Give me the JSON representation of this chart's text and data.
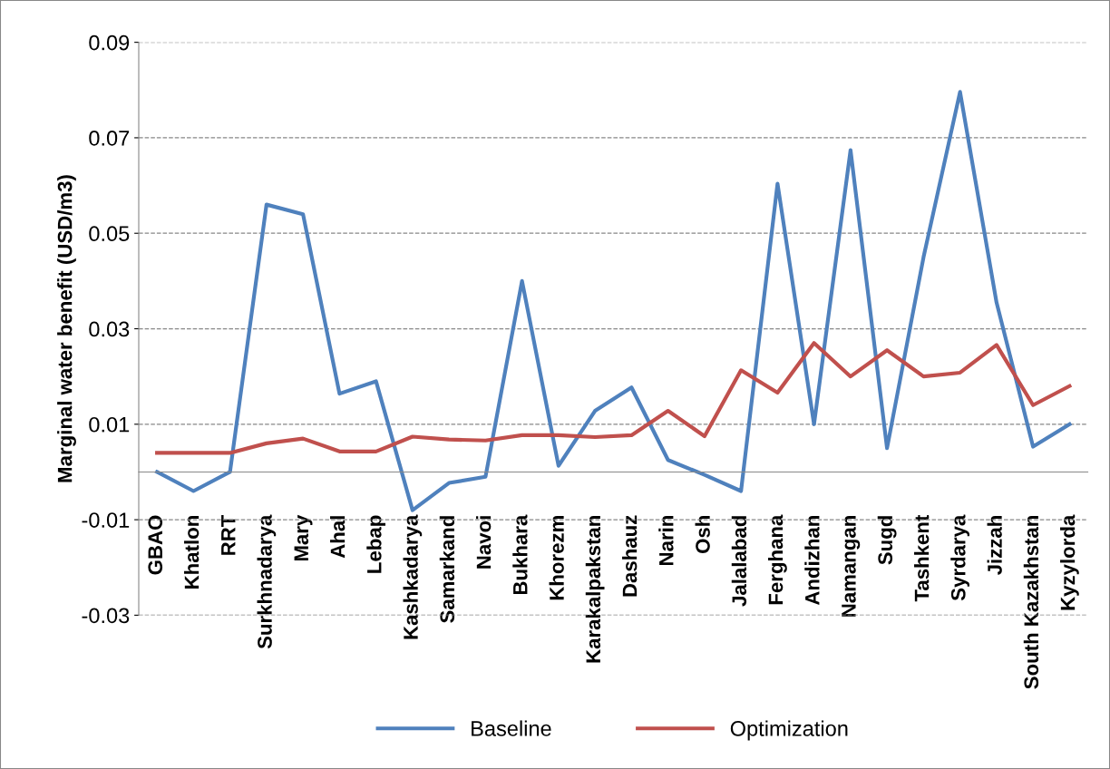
{
  "chart_data": {
    "type": "line",
    "ylabel": "Marginal water benefit (USD/m3)",
    "categories": [
      "GBAO",
      "Khatlon",
      "RRT",
      "Surkhnadarya",
      "Mary",
      "Ahal",
      "Lebap",
      "Kashkadarya",
      "Samarkand",
      "Navoi",
      "Bukhara",
      "Khorezm",
      "Karakalpakstan",
      "Dashauz",
      "Narin",
      "Osh",
      "Jalalabad",
      "Ferghana",
      "Andizhan",
      "Namangan",
      "Sugd",
      "Tashkent",
      "Syrdarya",
      "Jizzah",
      "South Kazakhstan",
      "Kyzylorda"
    ],
    "series": [
      {
        "name": "Baseline",
        "color": "#4f81bd",
        "values": [
          0.0,
          -0.004,
          0.0,
          0.056,
          0.054,
          0.0164,
          0.019,
          -0.008,
          -0.0023,
          -0.001,
          0.04,
          0.0013,
          0.0128,
          0.0177,
          0.0025,
          -0.0006,
          -0.004,
          0.0604,
          0.01,
          0.0674,
          0.005,
          0.045,
          0.0796,
          0.0355,
          0.0053,
          0.01
        ]
      },
      {
        "name": "Optimization",
        "color": "#c0504d",
        "values": [
          0.004,
          0.004,
          0.004,
          0.006,
          0.007,
          0.0043,
          0.0043,
          0.0074,
          0.0068,
          0.0066,
          0.0077,
          0.0077,
          0.0073,
          0.0077,
          0.0128,
          0.0075,
          0.0213,
          0.0166,
          0.027,
          0.02,
          0.0255,
          0.02,
          0.0208,
          0.0266,
          0.014,
          0.018
        ]
      }
    ],
    "ylim": [
      -0.03,
      0.09
    ],
    "yticks": [
      -0.03,
      -0.01,
      0.01,
      0.03,
      0.05,
      0.07,
      0.09
    ],
    "grid": "y",
    "legend": "bottom",
    "marker": "none",
    "line_style": "solid"
  }
}
